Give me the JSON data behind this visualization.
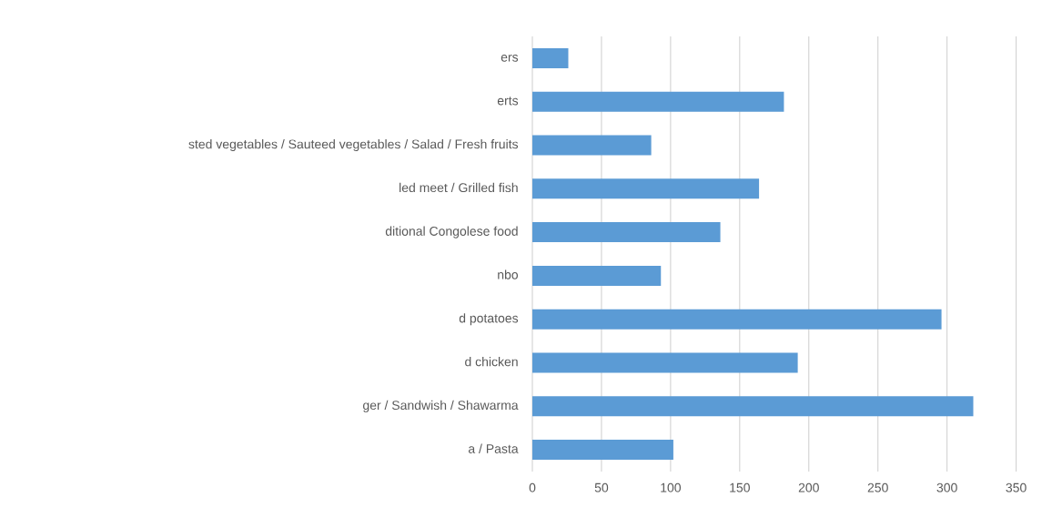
{
  "chart_data": {
    "type": "bar",
    "orientation": "horizontal",
    "categories": [
      "ers",
      "erts",
      "sted vegetables / Sauteed vegetables / Salad / Fresh fruits",
      "led meet / Grilled fish",
      "ditional Congolese food",
      "nbo",
      "d potatoes",
      "d chicken",
      "ger / Sandwish / Shawarma",
      "a / Pasta"
    ],
    "values": [
      26,
      182,
      86,
      164,
      136,
      93,
      296,
      192,
      319,
      102
    ],
    "color": "#5b9bd5",
    "xlim": [
      0,
      350
    ],
    "xticks": [
      0,
      50,
      100,
      150,
      200,
      250,
      300,
      350
    ],
    "grid": "x"
  }
}
